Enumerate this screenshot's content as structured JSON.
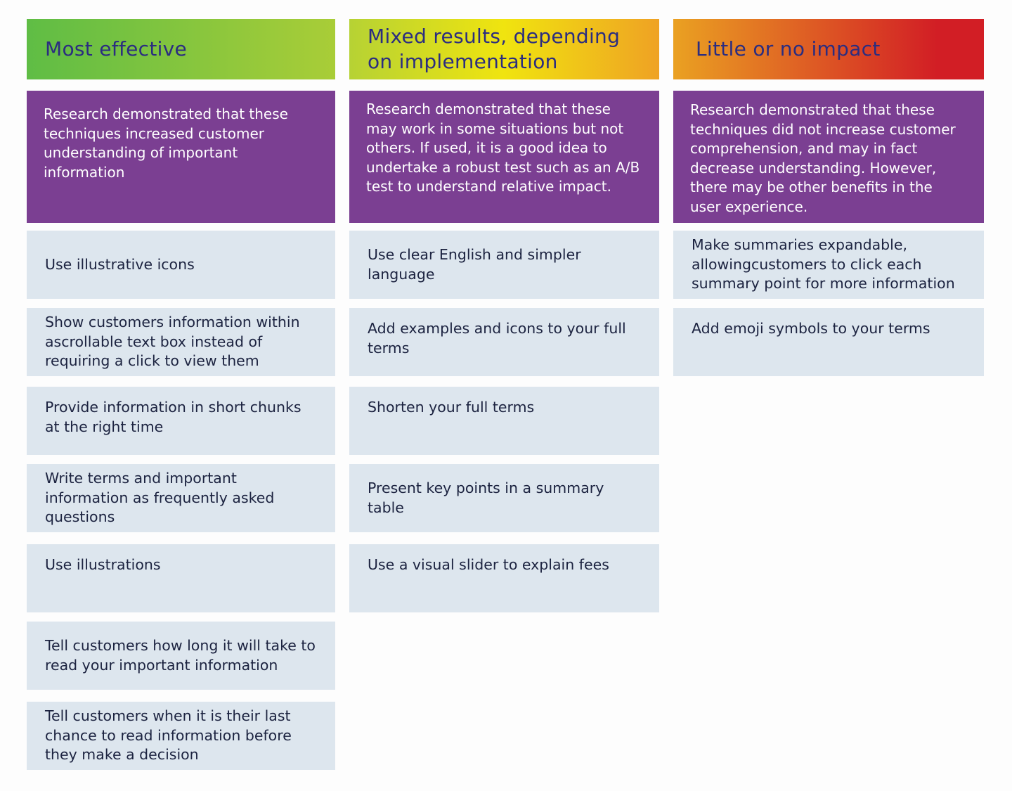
{
  "columns": [
    {
      "heading": "Most effective",
      "intro": "Research demonstrated that these techniques increased customer understanding of important information",
      "items": [
        "Use illustrative icons",
        "Show customers information within ascrollable text box instead of requiring a click to view them",
        "Provide information in short chunks at the right time",
        "Write terms and important information as frequently asked questions",
        "Use illustrations",
        "Tell customers how long it will take to read your important information",
        "Tell customers when it is their last chance to read information before they make a decision"
      ]
    },
    {
      "heading": "Mixed results, depending on implementation",
      "intro": "Research demonstrated that these may work in some situations but not others. If used, it is a good idea to undertake a robust test such as an A/B test to understand relative impact.",
      "items": [
        "Use clear English and simpler language",
        "Add examples and icons to your full terms",
        "Shorten your full terms",
        "Present key points in a summary table",
        "Use a visual slider to explain fees"
      ]
    },
    {
      "heading": "Little or no impact",
      "intro": "Research demonstrated that these techniques did not increase customer comprehension, and may in fact decrease understanding. However, there may be other benefits in the user experience.",
      "items": [
        "Make summaries expandable, allowingcustomers to click each summary point for more information",
        "Add emoji symbols to your terms"
      ]
    }
  ],
  "colors": {
    "purple": "#7b3f92",
    "card": "#dde6ee",
    "heading_text": "#2b2d80",
    "green": "#5fbd45",
    "yellow": "#f0e40f",
    "red": "#d21e25"
  }
}
